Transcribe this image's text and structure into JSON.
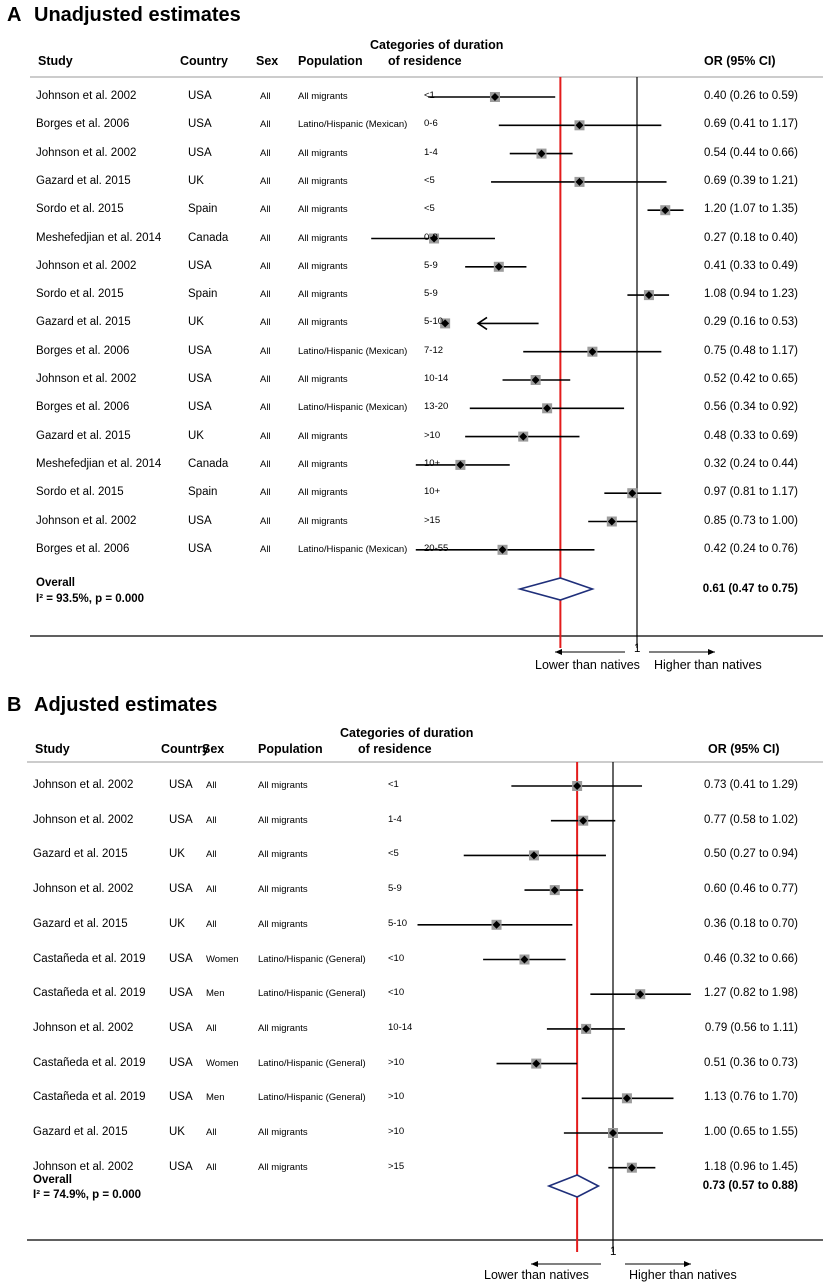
{
  "chart_data": [
    {
      "type": "forest",
      "panel_label": "A",
      "title": "Unadjusted estimates",
      "columns": {
        "study": "Study",
        "country": "Country",
        "sex": "Sex",
        "population": "Population",
        "category_line1": "Categories of duration",
        "category_line2": "of residence",
        "or": "OR (95% CI)"
      },
      "rows": [
        {
          "study": "Johnson et al. 2002",
          "country": "USA",
          "sex": "All",
          "population": "All migrants",
          "category": "<1",
          "or": 0.4,
          "lo": 0.26,
          "hi": 0.59,
          "or_text": "0.40 (0.26 to 0.59)"
        },
        {
          "study": "Borges et al. 2006",
          "country": "USA",
          "sex": "All",
          "population": "Latino/Hispanic (Mexican)",
          "category": "0-6",
          "or": 0.69,
          "lo": 0.41,
          "hi": 1.17,
          "or_text": "0.69 (0.41 to 1.17)"
        },
        {
          "study": "Johnson et al. 2002",
          "country": "USA",
          "sex": "All",
          "population": "All migrants",
          "category": "1-4",
          "or": 0.54,
          "lo": 0.44,
          "hi": 0.66,
          "or_text": "0.54 (0.44 to 0.66)"
        },
        {
          "study": "Gazard et al. 2015",
          "country": "UK",
          "sex": "All",
          "population": "All migrants",
          "category": "<5",
          "or": 0.69,
          "lo": 0.39,
          "hi": 1.21,
          "or_text": "0.69 (0.39 to 1.21)"
        },
        {
          "study": "Sordo et al. 2015",
          "country": "Spain",
          "sex": "All",
          "population": "All migrants",
          "category": "<5",
          "or": 1.2,
          "lo": 1.07,
          "hi": 1.35,
          "or_text": "1.20 (1.07 to 1.35)"
        },
        {
          "study": "Meshefedjian et al. 2014",
          "country": "Canada",
          "sex": "All",
          "population": "All migrants",
          "category": "0-9",
          "or": 0.27,
          "lo": 0.18,
          "hi": 0.4,
          "or_text": "0.27 (0.18 to 0.40)"
        },
        {
          "study": "Johnson et al. 2002",
          "country": "USA",
          "sex": "All",
          "population": "All migrants",
          "category": "5-9",
          "or": 0.41,
          "lo": 0.33,
          "hi": 0.49,
          "or_text": "0.41 (0.33 to 0.49)"
        },
        {
          "study": "Sordo et al. 2015",
          "country": "Spain",
          "sex": "All",
          "population": "All migrants",
          "category": "5-9",
          "or": 1.08,
          "lo": 0.94,
          "hi": 1.23,
          "or_text": "1.08 (0.94 to 1.23)"
        },
        {
          "study": "Gazard et al. 2015",
          "country": "UK",
          "sex": "All",
          "population": "All migrants",
          "category": "5-10",
          "or": 0.29,
          "lo": 0.16,
          "hi": 0.53,
          "or_text": "0.29 (0.16 to 0.53)",
          "arrow_left": true
        },
        {
          "study": "Borges et al. 2006",
          "country": "USA",
          "sex": "All",
          "population": "Latino/Hispanic (Mexican)",
          "category": "7-12",
          "or": 0.75,
          "lo": 0.48,
          "hi": 1.17,
          "or_text": "0.75 (0.48 to 1.17)"
        },
        {
          "study": "Johnson et al. 2002",
          "country": "USA",
          "sex": "All",
          "population": "All migrants",
          "category": "10-14",
          "or": 0.52,
          "lo": 0.42,
          "hi": 0.65,
          "or_text": "0.52 (0.42 to 0.65)"
        },
        {
          "study": "Borges et al. 2006",
          "country": "USA",
          "sex": "All",
          "population": "Latino/Hispanic (Mexican)",
          "category": "13-20",
          "or": 0.56,
          "lo": 0.34,
          "hi": 0.92,
          "or_text": "0.56 (0.34 to 0.92)"
        },
        {
          "study": "Gazard et al. 2015",
          "country": "UK",
          "sex": "All",
          "population": "All migrants",
          "category": ">10",
          "or": 0.48,
          "lo": 0.33,
          "hi": 0.69,
          "or_text": "0.48 (0.33 to 0.69)"
        },
        {
          "study": "Meshefedjian et al. 2014",
          "country": "Canada",
          "sex": "All",
          "population": "All migrants",
          "category": "10+",
          "or": 0.32,
          "lo": 0.24,
          "hi": 0.44,
          "or_text": "0.32 (0.24 to 0.44)"
        },
        {
          "study": "Sordo et al. 2015",
          "country": "Spain",
          "sex": "All",
          "population": "All migrants",
          "category": "10+",
          "or": 0.97,
          "lo": 0.81,
          "hi": 1.17,
          "or_text": "0.97 (0.81 to 1.17)"
        },
        {
          "study": "Johnson et al. 2002",
          "country": "USA",
          "sex": "All",
          "population": "All migrants",
          "category": ">15",
          "or": 0.85,
          "lo": 0.73,
          "hi": 1.0,
          "or_text": "0.85 (0.73 to 1.00)"
        },
        {
          "study": "Borges et al. 2006",
          "country": "USA",
          "sex": "All",
          "population": "Latino/Hispanic (Mexican)",
          "category": "20-55",
          "or": 0.42,
          "lo": 0.24,
          "hi": 0.76,
          "or_text": "0.42 (0.24 to 0.76)"
        }
      ],
      "overall": {
        "label": "Overall",
        "heterogeneity": "I² = 93.5%, p = 0.000",
        "or": 0.61,
        "lo": 0.47,
        "hi": 0.75,
        "or_text": "0.61 (0.47 to 0.75)"
      },
      "reference_line": 1,
      "reference_label": "1",
      "lower_label": "Lower than natives",
      "higher_label": "Higher than natives",
      "colors": {
        "red_line": "#e31b1b",
        "diamond": "#1f2f7a",
        "ci": "#000000",
        "square": "#9c9c9c"
      }
    },
    {
      "type": "forest",
      "panel_label": "B",
      "title": "Adjusted estimates",
      "columns": {
        "study": "Study",
        "country": "Country",
        "sex": "Sex",
        "population": "Population",
        "category_line1": "Categories of duration",
        "category_line2": "of residence",
        "or": "OR (95% CI)"
      },
      "rows": [
        {
          "study": "Johnson et al. 2002",
          "country": "USA",
          "sex": "All",
          "population": "All migrants",
          "category": "<1",
          "or": 0.73,
          "lo": 0.41,
          "hi": 1.29,
          "or_text": "0.73 (0.41 to 1.29)"
        },
        {
          "study": "Johnson et al. 2002",
          "country": "USA",
          "sex": "All",
          "population": "All migrants",
          "category": "1-4",
          "or": 0.77,
          "lo": 0.58,
          "hi": 1.02,
          "or_text": "0.77 (0.58 to 1.02)"
        },
        {
          "study": "Gazard et al. 2015",
          "country": "UK",
          "sex": "All",
          "population": "All migrants",
          "category": "<5",
          "or": 0.5,
          "lo": 0.27,
          "hi": 0.94,
          "or_text": "0.50 (0.27 to 0.94)"
        },
        {
          "study": "Johnson et al. 2002",
          "country": "USA",
          "sex": "All",
          "population": "All migrants",
          "category": "5-9",
          "or": 0.6,
          "lo": 0.46,
          "hi": 0.77,
          "or_text": "0.60 (0.46 to 0.77)"
        },
        {
          "study": "Gazard et al. 2015",
          "country": "UK",
          "sex": "All",
          "population": "All migrants",
          "category": "5-10",
          "or": 0.36,
          "lo": 0.18,
          "hi": 0.7,
          "or_text": "0.36 (0.18 to 0.70)"
        },
        {
          "study": "Castañeda et al. 2019",
          "country": "USA",
          "sex": "Women",
          "population": "Latino/Hispanic (General)",
          "category": "<10",
          "or": 0.46,
          "lo": 0.32,
          "hi": 0.66,
          "or_text": "0.46 (0.32 to 0.66)"
        },
        {
          "study": "Castañeda et al. 2019",
          "country": "USA",
          "sex": "Men",
          "population": "Latino/Hispanic (General)",
          "category": "<10",
          "or": 1.27,
          "lo": 0.82,
          "hi": 1.98,
          "or_text": "1.27 (0.82 to 1.98)"
        },
        {
          "study": "Johnson et al. 2002",
          "country": "USA",
          "sex": "All",
          "population": "All migrants",
          "category": "10-14",
          "or": 0.79,
          "lo": 0.56,
          "hi": 1.11,
          "or_text": "0.79 (0.56 to 1.11)"
        },
        {
          "study": "Castañeda et al. 2019",
          "country": "USA",
          "sex": "Women",
          "population": "Latino/Hispanic (General)",
          "category": ">10",
          "or": 0.51,
          "lo": 0.36,
          "hi": 0.73,
          "or_text": "0.51 (0.36 to 0.73)"
        },
        {
          "study": "Castañeda et al. 2019",
          "country": "USA",
          "sex": "Men",
          "population": "Latino/Hispanic (General)",
          "category": ">10",
          "or": 1.13,
          "lo": 0.76,
          "hi": 1.7,
          "or_text": "1.13 (0.76 to 1.70)"
        },
        {
          "study": "Gazard et al. 2015",
          "country": "UK",
          "sex": "All",
          "population": "All migrants",
          "category": ">10",
          "or": 1.0,
          "lo": 0.65,
          "hi": 1.55,
          "or_text": "1.00 (0.65 to 1.55)"
        },
        {
          "study": "Johnson et al. 2002",
          "country": "USA",
          "sex": "All",
          "population": "All migrants",
          "category": ">15",
          "or": 1.18,
          "lo": 0.96,
          "hi": 1.45,
          "or_text": "1.18 (0.96 to 1.45)"
        }
      ],
      "overall": {
        "label": "Overall",
        "heterogeneity": "I² = 74.9%, p = 0.000",
        "or": 0.73,
        "lo": 0.57,
        "hi": 0.88,
        "or_text": "0.73 (0.57 to 0.88)"
      },
      "reference_line": 1,
      "reference_label": "1",
      "lower_label": "Lower than natives",
      "higher_label": "Higher than natives",
      "colors": {
        "red_line": "#e31b1b",
        "diamond": "#1f2f7a",
        "ci": "#000000",
        "square": "#9c9c9c"
      }
    }
  ]
}
